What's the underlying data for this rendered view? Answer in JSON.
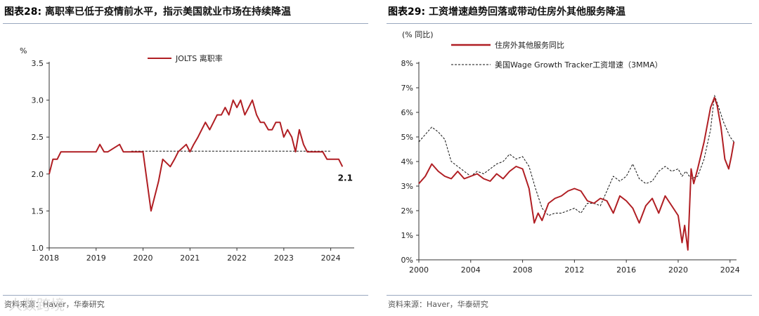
{
  "left": {
    "title_num": "图表28:",
    "title_text": "离职率已低于疫情前水平，指示美国就业市场在持续降温",
    "source": "资料来源：Haver，华泰研究"
  },
  "right": {
    "title_num": "图表29:",
    "title_text": "工资增速趋势回落或带动住房外其他服务降温",
    "source": "资料来源：Haver，华泰研究"
  },
  "watermark": "大数跨境",
  "colors": {
    "red": "#b01e23",
    "black": "#111111",
    "axis": "#333333"
  },
  "chart_data": [
    {
      "type": "line",
      "unit_label": "%",
      "ylim": [
        1.0,
        3.5
      ],
      "yticks": [
        "1.0",
        "1.5",
        "2.0",
        "2.5",
        "3.0",
        "3.5"
      ],
      "xlim": [
        2018,
        2024.5
      ],
      "xticks": [
        "2018",
        "2019",
        "2020",
        "2021",
        "2022",
        "2023",
        "2024"
      ],
      "reference_line": {
        "y": 2.31,
        "x_from": 2019.75,
        "x_to": 2024
      },
      "end_label": "2.1",
      "legend": {
        "position": "top-center"
      },
      "series": [
        {
          "name": "JOLTS 离职率",
          "style": "solid",
          "x": [
            2018.0,
            2018.08,
            2018.17,
            2018.25,
            2018.33,
            2018.5,
            2018.75,
            2018.9,
            2019.0,
            2019.08,
            2019.17,
            2019.25,
            2019.5,
            2019.58,
            2019.67,
            2019.83,
            2020.0,
            2020.17,
            2020.33,
            2020.42,
            2020.58,
            2020.67,
            2020.75,
            2020.92,
            2021.0,
            2021.08,
            2021.17,
            2021.33,
            2021.42,
            2021.5,
            2021.58,
            2021.67,
            2021.75,
            2021.83,
            2021.92,
            2022.0,
            2022.08,
            2022.17,
            2022.25,
            2022.33,
            2022.42,
            2022.5,
            2022.58,
            2022.67,
            2022.75,
            2022.83,
            2022.92,
            2023.0,
            2023.08,
            2023.17,
            2023.25,
            2023.33,
            2023.42,
            2023.5,
            2023.58,
            2023.67,
            2023.75,
            2023.83,
            2023.92,
            2024.0,
            2024.08,
            2024.17,
            2024.25
          ],
          "y": [
            2.0,
            2.2,
            2.2,
            2.3,
            2.3,
            2.3,
            2.3,
            2.3,
            2.3,
            2.4,
            2.3,
            2.3,
            2.4,
            2.3,
            2.3,
            2.3,
            2.3,
            1.5,
            1.9,
            2.2,
            2.1,
            2.2,
            2.3,
            2.4,
            2.3,
            2.4,
            2.5,
            2.7,
            2.6,
            2.7,
            2.8,
            2.8,
            2.9,
            2.8,
            3.0,
            2.9,
            3.0,
            2.8,
            2.9,
            3.0,
            2.8,
            2.7,
            2.7,
            2.6,
            2.6,
            2.7,
            2.7,
            2.5,
            2.6,
            2.5,
            2.3,
            2.6,
            2.4,
            2.3,
            2.3,
            2.3,
            2.3,
            2.3,
            2.2,
            2.2,
            2.2,
            2.2,
            2.1
          ]
        }
      ]
    },
    {
      "type": "line",
      "unit_label": "(% 同比)",
      "ylim": [
        0,
        8
      ],
      "yticks": [
        "0%",
        "1%",
        "2%",
        "3%",
        "4%",
        "5%",
        "6%",
        "7%",
        "8%"
      ],
      "xlim": [
        2000,
        2024.5
      ],
      "xticks": [
        "2000",
        "2004",
        "2008",
        "2012",
        "2016",
        "2020",
        "2024"
      ],
      "legend": {
        "position": "top-left"
      },
      "series": [
        {
          "name": "住房外其他服务同比",
          "style": "solid",
          "x": [
            2000.0,
            2000.5,
            2001.0,
            2001.5,
            2002.0,
            2002.5,
            2003.0,
            2003.5,
            2004.0,
            2004.5,
            2005.0,
            2005.5,
            2006.0,
            2006.5,
            2007.0,
            2007.5,
            2008.0,
            2008.5,
            2008.9,
            2009.2,
            2009.5,
            2010.0,
            2010.5,
            2011.0,
            2011.5,
            2012.0,
            2012.5,
            2013.0,
            2013.5,
            2014.0,
            2014.5,
            2015.0,
            2015.5,
            2016.0,
            2016.5,
            2017.0,
            2017.5,
            2018.0,
            2018.5,
            2019.0,
            2019.5,
            2020.0,
            2020.3,
            2020.5,
            2020.75,
            2021.0,
            2021.2,
            2021.5,
            2022.0,
            2022.5,
            2022.8,
            2023.0,
            2023.3,
            2023.6,
            2023.9,
            2024.1,
            2024.3
          ],
          "y": [
            3.1,
            3.4,
            3.9,
            3.6,
            3.4,
            3.3,
            3.6,
            3.3,
            3.4,
            3.5,
            3.3,
            3.2,
            3.5,
            3.3,
            3.6,
            3.8,
            3.7,
            2.9,
            1.5,
            1.9,
            1.6,
            2.3,
            2.5,
            2.6,
            2.8,
            2.9,
            2.8,
            2.4,
            2.3,
            2.5,
            2.4,
            1.9,
            2.6,
            2.4,
            2.1,
            1.5,
            2.2,
            2.5,
            1.9,
            2.6,
            2.2,
            1.8,
            0.7,
            1.4,
            0.4,
            3.7,
            3.1,
            3.7,
            4.8,
            6.2,
            6.6,
            6.3,
            5.4,
            4.1,
            3.7,
            4.2,
            4.8
          ]
        },
        {
          "name": "美国Wage Growth Tracker工资增速（3MMA）",
          "style": "dashed",
          "x": [
            2000.0,
            2000.5,
            2001.0,
            2001.5,
            2002.0,
            2002.5,
            2003.0,
            2003.5,
            2004.0,
            2004.5,
            2005.0,
            2005.5,
            2006.0,
            2006.5,
            2007.0,
            2007.5,
            2008.0,
            2008.5,
            2009.0,
            2009.5,
            2010.0,
            2010.5,
            2011.0,
            2011.5,
            2012.0,
            2012.5,
            2013.0,
            2013.5,
            2014.0,
            2014.5,
            2015.0,
            2015.5,
            2016.0,
            2016.5,
            2017.0,
            2017.5,
            2018.0,
            2018.5,
            2019.0,
            2019.5,
            2020.0,
            2020.3,
            2020.6,
            2021.0,
            2021.5,
            2022.0,
            2022.5,
            2022.8,
            2023.0,
            2023.5,
            2024.0,
            2024.3
          ],
          "y": [
            4.8,
            5.1,
            5.4,
            5.2,
            4.9,
            4.0,
            3.8,
            3.6,
            3.4,
            3.6,
            3.5,
            3.7,
            3.9,
            4.0,
            4.3,
            4.1,
            4.2,
            3.8,
            2.9,
            2.1,
            1.8,
            1.9,
            1.9,
            2.0,
            2.1,
            1.9,
            2.3,
            2.3,
            2.2,
            2.8,
            3.4,
            3.2,
            3.4,
            3.9,
            3.3,
            3.1,
            3.2,
            3.6,
            3.8,
            3.6,
            3.7,
            3.4,
            3.6,
            3.3,
            3.4,
            4.1,
            5.3,
            6.7,
            6.4,
            5.6,
            5.0,
            4.8
          ]
        }
      ]
    }
  ]
}
